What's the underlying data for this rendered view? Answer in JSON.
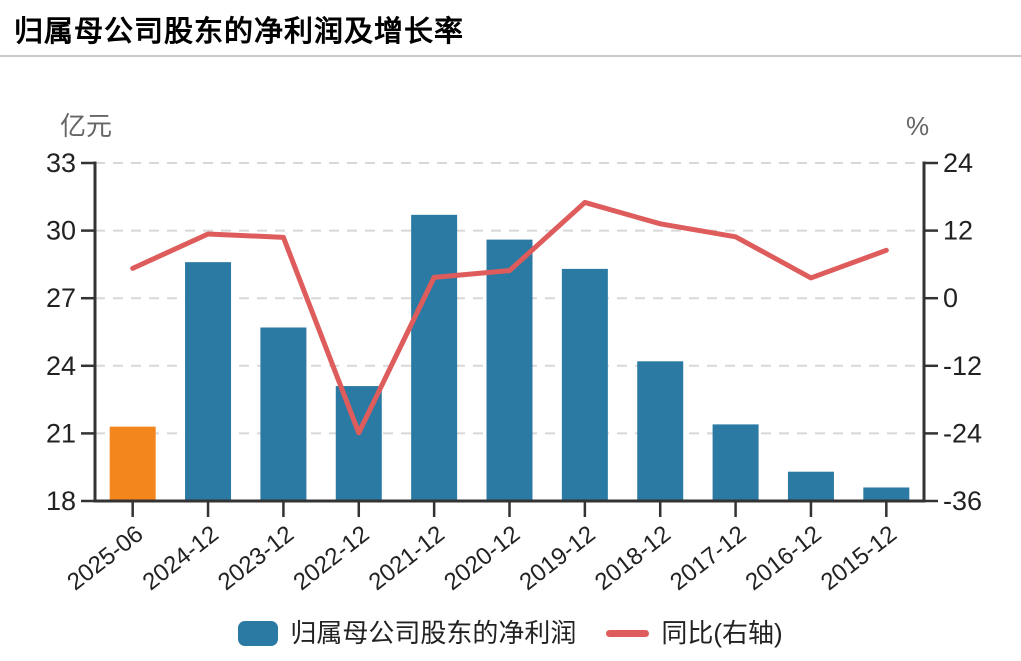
{
  "header": {
    "title": "归属母公司股东的净利润及增长率"
  },
  "chart_data": {
    "type": "bar",
    "title": "归属母公司股东的净利润及增长率",
    "categories": [
      "2025-06",
      "2024-12",
      "2023-12",
      "2022-12",
      "2021-12",
      "2020-12",
      "2019-12",
      "2018-12",
      "2017-12",
      "2016-12",
      "2015-12"
    ],
    "series": [
      {
        "name": "归属母公司股东的净利润",
        "type": "bar",
        "axis": "left",
        "unit": "亿元",
        "color": "#2b7aa4",
        "highlight": {
          "index": 0,
          "color": "#f4861e"
        },
        "values": [
          21.3,
          28.6,
          25.7,
          23.1,
          30.7,
          29.6,
          28.3,
          24.2,
          21.4,
          19.3,
          18.6
        ]
      },
      {
        "name": "同比(右轴)",
        "type": "line",
        "axis": "right",
        "unit": "%",
        "color": "#de5c5c",
        "values": [
          5.3,
          11.4,
          10.8,
          -23.9,
          3.7,
          4.9,
          17.0,
          13.2,
          10.9,
          3.6,
          8.5
        ]
      }
    ],
    "left_axis": {
      "unit": "亿元",
      "min": 18,
      "max": 33,
      "ticks": [
        33,
        30,
        27,
        24,
        21,
        18
      ]
    },
    "right_axis": {
      "unit": "%",
      "min": -36,
      "max": 24,
      "ticks": [
        24,
        12,
        0,
        -12,
        -24,
        -36
      ]
    },
    "grid": {
      "horizontal_dashed": true
    },
    "legend_position": "bottom",
    "x_label_rotation_deg": -38
  },
  "colors": {
    "bar": "#2b7aa4",
    "bar_highlight": "#f4861e",
    "line": "#de5c5c",
    "axis": "#333333",
    "gridline": "#d8d8d8",
    "tick_text": "#222222",
    "unit_text": "#666666"
  }
}
